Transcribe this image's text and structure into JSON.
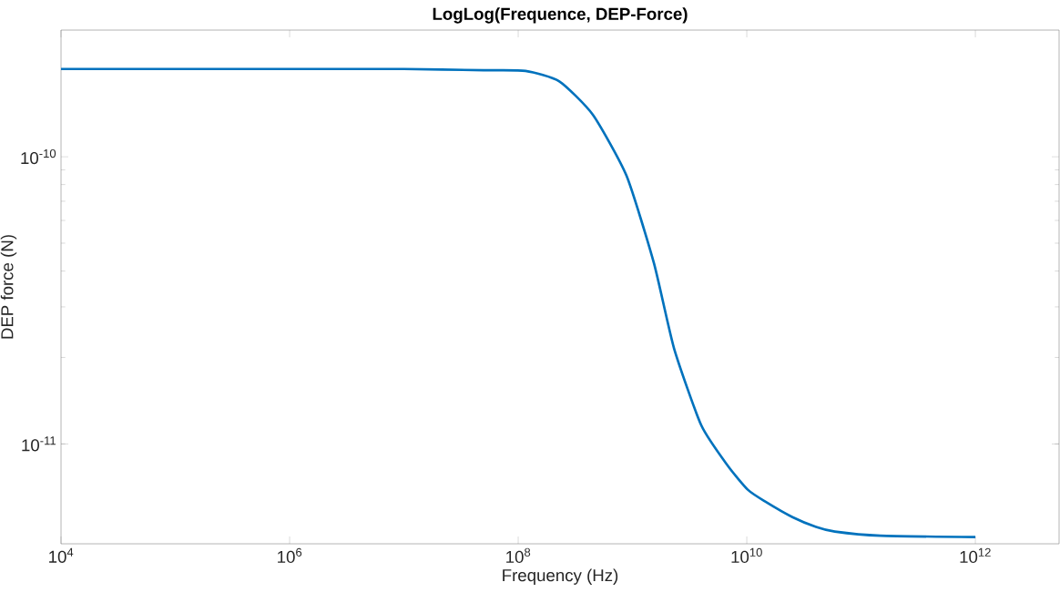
{
  "chart_data": {
    "type": "line",
    "title": "LogLog(Frequence, DEP-Force)",
    "xlabel": "Frequency (Hz)",
    "ylabel": "DEP force (N)",
    "log": "xy",
    "grid": false,
    "marker": "none",
    "line_style": "solid",
    "xlim": [
      10000.0,
      5400000000000.0
    ],
    "ylim": [
      4.49e-12,
      2.76e-10
    ],
    "xticks": [
      {
        "value": 10000.0,
        "label": "10$^{4}$"
      },
      {
        "value": 1000000.0,
        "label": "10$^{6}$"
      },
      {
        "value": 100000000.0,
        "label": "10$^{8}$"
      },
      {
        "value": 10000000000.0,
        "label": "10$^{10}$"
      },
      {
        "value": 1000000000000.0,
        "label": "10$^{12}$"
      }
    ],
    "yticks": [
      {
        "value": 1e-11,
        "label": "10$^{-11}$"
      },
      {
        "value": 1e-10,
        "label": "10$^{-10}$"
      }
    ],
    "series": [
      {
        "color": "#0072bd",
        "x": [
          10000.0,
          1000000.0,
          10000000.0,
          50000000.0,
          116000000.0,
          229000000.0,
          450000000.0,
          887000000.0,
          1540000000.0,
          2310000000.0,
          4000000000.0,
          6810000000.0,
          10200000000.0,
          14500000000.0,
          25100000000.0,
          40400000000.0,
          59000000000.0,
          148000000000.0,
          1000000000000.0
        ],
        "values": [
          2.02e-10,
          2.02e-10,
          2.02e-10,
          2e-10,
          1.99e-10,
          1.83e-10,
          1.4e-10,
          8.58e-11,
          4.26e-11,
          2.15e-11,
          1.16e-11,
          8.4e-12,
          6.93e-12,
          6.3e-12,
          5.56e-12,
          5.14e-12,
          4.95e-12,
          4.79e-12,
          4.74e-12
        ]
      }
    ]
  }
}
